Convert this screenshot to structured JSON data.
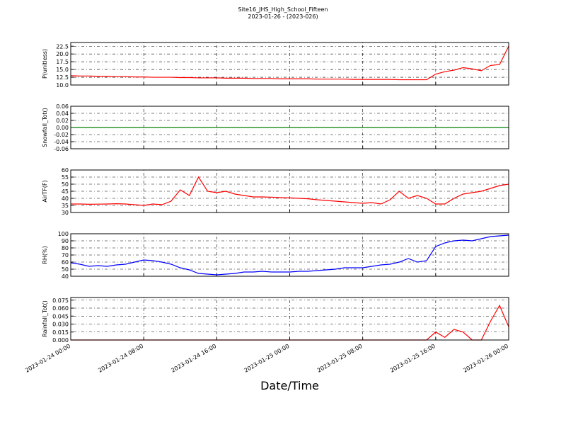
{
  "chart_data": [
    {
      "type": "line",
      "title": "Site16_JHS_High_School_Fifteen",
      "subtitle": "2023-01-26 - (2023-026)",
      "ylabel": "P(unitless)",
      "color": "#ff0000",
      "grid": true,
      "xticklabels": false,
      "xlim": [
        "2023-01-24 00:00",
        "2023-01-26 00:00"
      ],
      "xticks": [
        "2023-01-24 00:00",
        "2023-01-24 08:00",
        "2023-01-24 16:00",
        "2023-01-25 00:00",
        "2023-01-25 08:00",
        "2023-01-25 16:00",
        "2023-01-26 00:00"
      ],
      "ylim": [
        10,
        23.7
      ],
      "yticks": [
        {
          "value": 10,
          "label": "10.0"
        },
        {
          "value": 12.5,
          "label": "12.5"
        },
        {
          "value": 15,
          "label": "15.0"
        },
        {
          "value": 17.5,
          "label": "17.5"
        },
        {
          "value": 20,
          "label": "20.0"
        },
        {
          "value": 22.5,
          "label": "22.5"
        }
      ],
      "x": [
        "2023-01-24 00:00",
        "2023-01-24 01:00",
        "2023-01-24 02:00",
        "2023-01-24 03:00",
        "2023-01-24 04:00",
        "2023-01-24 05:00",
        "2023-01-24 06:00",
        "2023-01-24 07:00",
        "2023-01-24 08:00",
        "2023-01-24 09:00",
        "2023-01-24 10:00",
        "2023-01-24 11:00",
        "2023-01-24 12:00",
        "2023-01-24 13:00",
        "2023-01-24 14:00",
        "2023-01-24 15:00",
        "2023-01-24 16:00",
        "2023-01-24 17:00",
        "2023-01-24 18:00",
        "2023-01-24 19:00",
        "2023-01-24 20:00",
        "2023-01-24 21:00",
        "2023-01-24 22:00",
        "2023-01-24 23:00",
        "2023-01-25 00:00",
        "2023-01-25 01:00",
        "2023-01-25 02:00",
        "2023-01-25 03:00",
        "2023-01-25 04:00",
        "2023-01-25 05:00",
        "2023-01-25 06:00",
        "2023-01-25 07:00",
        "2023-01-25 08:00",
        "2023-01-25 09:00",
        "2023-01-25 10:00",
        "2023-01-25 11:00",
        "2023-01-25 12:00",
        "2023-01-25 13:00",
        "2023-01-25 14:00",
        "2023-01-25 15:00",
        "2023-01-25 16:00",
        "2023-01-25 17:00",
        "2023-01-25 18:00",
        "2023-01-25 19:00",
        "2023-01-25 20:00",
        "2023-01-25 21:00",
        "2023-01-25 22:00",
        "2023-01-25 23:00",
        "2023-01-26 00:00"
      ],
      "values": [
        13.0,
        12.9,
        12.9,
        12.8,
        12.8,
        12.7,
        12.7,
        12.6,
        12.6,
        12.5,
        12.5,
        12.5,
        12.4,
        12.4,
        12.3,
        12.3,
        12.3,
        12.2,
        12.2,
        12.2,
        12.1,
        12.1,
        12.1,
        12.0,
        12.0,
        12.0,
        12.0,
        11.9,
        11.9,
        11.9,
        11.9,
        11.8,
        11.8,
        11.8,
        11.8,
        11.8,
        11.7,
        11.7,
        11.7,
        11.7,
        13.5,
        14.3,
        14.8,
        15.6,
        15.2,
        14.6,
        16.3,
        16.6,
        22.5
      ]
    },
    {
      "type": "line",
      "ylabel": "Snowfall_Tot()",
      "color": "#007f00",
      "grid": true,
      "xticklabels": false,
      "xlim": [
        "2023-01-24 00:00",
        "2023-01-26 00:00"
      ],
      "xticks": [
        "2023-01-24 00:00",
        "2023-01-24 08:00",
        "2023-01-24 16:00",
        "2023-01-25 00:00",
        "2023-01-25 08:00",
        "2023-01-25 16:00",
        "2023-01-26 00:00"
      ],
      "ylim": [
        -0.06,
        0.06
      ],
      "yticks": [
        {
          "value": -0.06,
          "label": "-0.06"
        },
        {
          "value": -0.04,
          "label": "-0.04"
        },
        {
          "value": -0.02,
          "label": "-0.02"
        },
        {
          "value": 0,
          "label": "0.00"
        },
        {
          "value": 0.02,
          "label": "0.02"
        },
        {
          "value": 0.04,
          "label": "0.04"
        },
        {
          "value": 0.06,
          "label": "0.06"
        }
      ],
      "x": [
        "2023-01-24 00:00",
        "2023-01-24 01:00",
        "2023-01-24 02:00",
        "2023-01-24 03:00",
        "2023-01-24 04:00",
        "2023-01-24 05:00",
        "2023-01-24 06:00",
        "2023-01-24 07:00",
        "2023-01-24 08:00",
        "2023-01-24 09:00",
        "2023-01-24 10:00",
        "2023-01-24 11:00",
        "2023-01-24 12:00",
        "2023-01-24 13:00",
        "2023-01-24 14:00",
        "2023-01-24 15:00",
        "2023-01-24 16:00",
        "2023-01-24 17:00",
        "2023-01-24 18:00",
        "2023-01-24 19:00",
        "2023-01-24 20:00",
        "2023-01-24 21:00",
        "2023-01-24 22:00",
        "2023-01-24 23:00",
        "2023-01-25 00:00",
        "2023-01-25 01:00",
        "2023-01-25 02:00",
        "2023-01-25 03:00",
        "2023-01-25 04:00",
        "2023-01-25 05:00",
        "2023-01-25 06:00",
        "2023-01-25 07:00",
        "2023-01-25 08:00",
        "2023-01-25 09:00",
        "2023-01-25 10:00",
        "2023-01-25 11:00",
        "2023-01-25 12:00",
        "2023-01-25 13:00",
        "2023-01-25 14:00",
        "2023-01-25 15:00",
        "2023-01-25 16:00",
        "2023-01-25 17:00",
        "2023-01-25 18:00",
        "2023-01-25 19:00",
        "2023-01-25 20:00",
        "2023-01-25 21:00",
        "2023-01-25 22:00",
        "2023-01-25 23:00",
        "2023-01-26 00:00"
      ],
      "values": [
        0,
        0,
        0,
        0,
        0,
        0,
        0,
        0,
        0,
        0,
        0,
        0,
        0,
        0,
        0,
        0,
        0,
        0,
        0,
        0,
        0,
        0,
        0,
        0,
        0,
        0,
        0,
        0,
        0,
        0,
        0,
        0,
        0,
        0,
        0,
        0,
        0,
        0,
        0,
        0,
        0,
        0,
        0,
        0,
        0,
        0,
        0,
        0,
        0
      ]
    },
    {
      "type": "line",
      "ylabel": "AirTF(F)",
      "color": "#ff0000",
      "grid": true,
      "xticklabels": false,
      "xlim": [
        "2023-01-24 00:00",
        "2023-01-26 00:00"
      ],
      "xticks": [
        "2023-01-24 00:00",
        "2023-01-24 08:00",
        "2023-01-24 16:00",
        "2023-01-25 00:00",
        "2023-01-25 08:00",
        "2023-01-25 16:00",
        "2023-01-26 00:00"
      ],
      "ylim": [
        30,
        60
      ],
      "yticks": [
        30,
        35,
        40,
        45,
        50,
        55,
        60
      ],
      "x": [
        "2023-01-24 00:00",
        "2023-01-24 01:00",
        "2023-01-24 02:00",
        "2023-01-24 03:00",
        "2023-01-24 04:00",
        "2023-01-24 05:00",
        "2023-01-24 06:00",
        "2023-01-24 07:00",
        "2023-01-24 08:00",
        "2023-01-24 09:00",
        "2023-01-24 10:00",
        "2023-01-24 11:00",
        "2023-01-24 12:00",
        "2023-01-24 13:00",
        "2023-01-24 14:00",
        "2023-01-24 15:00",
        "2023-01-24 16:00",
        "2023-01-24 17:00",
        "2023-01-24 18:00",
        "2023-01-24 19:00",
        "2023-01-24 20:00",
        "2023-01-24 21:00",
        "2023-01-24 22:00",
        "2023-01-24 23:00",
        "2023-01-25 00:00",
        "2023-01-25 01:00",
        "2023-01-25 02:00",
        "2023-01-25 03:00",
        "2023-01-25 04:00",
        "2023-01-25 05:00",
        "2023-01-25 06:00",
        "2023-01-25 07:00",
        "2023-01-25 08:00",
        "2023-01-25 09:00",
        "2023-01-25 10:00",
        "2023-01-25 11:00",
        "2023-01-25 12:00",
        "2023-01-25 13:00",
        "2023-01-25 14:00",
        "2023-01-25 15:00",
        "2023-01-25 16:00",
        "2023-01-25 17:00",
        "2023-01-25 18:00",
        "2023-01-25 19:00",
        "2023-01-25 20:00",
        "2023-01-25 21:00",
        "2023-01-25 22:00",
        "2023-01-25 23:00",
        "2023-01-26 00:00"
      ],
      "values": [
        36,
        36,
        35.8,
        35.9,
        36,
        36.2,
        36,
        35.5,
        35,
        36,
        35.5,
        38,
        46,
        42,
        55,
        45,
        44,
        45,
        43,
        42,
        41,
        41,
        40.8,
        40.5,
        40.3,
        40,
        39.7,
        39,
        38.5,
        38,
        37.5,
        37,
        36.5,
        37,
        36,
        39,
        45,
        40,
        42,
        40,
        36,
        36,
        40,
        43,
        44,
        45,
        47,
        49,
        50
      ]
    },
    {
      "type": "line",
      "ylabel": "RH(%)",
      "color": "#0000ff",
      "grid": true,
      "xticklabels": false,
      "xlim": [
        "2023-01-24 00:00",
        "2023-01-26 00:00"
      ],
      "xticks": [
        "2023-01-24 00:00",
        "2023-01-24 08:00",
        "2023-01-24 16:00",
        "2023-01-25 00:00",
        "2023-01-25 08:00",
        "2023-01-25 16:00",
        "2023-01-26 00:00"
      ],
      "ylim": [
        40,
        100
      ],
      "yticks": [
        40,
        50,
        60,
        70,
        80,
        90,
        100
      ],
      "x": [
        "2023-01-24 00:00",
        "2023-01-24 01:00",
        "2023-01-24 02:00",
        "2023-01-24 03:00",
        "2023-01-24 04:00",
        "2023-01-24 05:00",
        "2023-01-24 06:00",
        "2023-01-24 07:00",
        "2023-01-24 08:00",
        "2023-01-24 09:00",
        "2023-01-24 10:00",
        "2023-01-24 11:00",
        "2023-01-24 12:00",
        "2023-01-24 13:00",
        "2023-01-24 14:00",
        "2023-01-24 15:00",
        "2023-01-24 16:00",
        "2023-01-24 17:00",
        "2023-01-24 18:00",
        "2023-01-24 19:00",
        "2023-01-24 20:00",
        "2023-01-24 21:00",
        "2023-01-24 22:00",
        "2023-01-24 23:00",
        "2023-01-25 00:00",
        "2023-01-25 01:00",
        "2023-01-25 02:00",
        "2023-01-25 03:00",
        "2023-01-25 04:00",
        "2023-01-25 05:00",
        "2023-01-25 06:00",
        "2023-01-25 07:00",
        "2023-01-25 08:00",
        "2023-01-25 09:00",
        "2023-01-25 10:00",
        "2023-01-25 11:00",
        "2023-01-25 12:00",
        "2023-01-25 13:00",
        "2023-01-25 14:00",
        "2023-01-25 15:00",
        "2023-01-25 16:00",
        "2023-01-25 17:00",
        "2023-01-25 18:00",
        "2023-01-25 19:00",
        "2023-01-25 20:00",
        "2023-01-25 21:00",
        "2023-01-25 22:00",
        "2023-01-25 23:00",
        "2023-01-26 00:00"
      ],
      "values": [
        59,
        57,
        54,
        55,
        54,
        56,
        57,
        60,
        63,
        62,
        60,
        57,
        52,
        49,
        44,
        43,
        42,
        43,
        44,
        46,
        46,
        47,
        46,
        46,
        46,
        47,
        47,
        48,
        49,
        50,
        52,
        52,
        52,
        54,
        56,
        57,
        60,
        65,
        60,
        62,
        82,
        87,
        90,
        91,
        90,
        93,
        96,
        97,
        98
      ]
    },
    {
      "type": "line",
      "ylabel": "Rainfall_Tot()",
      "xlabel": "Date/Time",
      "color": "#ff0000",
      "grid": true,
      "xticklabels": true,
      "xlim": [
        "2023-01-24 00:00",
        "2023-01-26 00:00"
      ],
      "xticks": [
        "2023-01-24 00:00",
        "2023-01-24 08:00",
        "2023-01-24 16:00",
        "2023-01-25 00:00",
        "2023-01-25 08:00",
        "2023-01-25 16:00",
        "2023-01-26 00:00"
      ],
      "ylim": [
        0,
        0.08
      ],
      "yticks": [
        {
          "value": 0,
          "label": "0.000"
        },
        {
          "value": 0.015,
          "label": "0.015"
        },
        {
          "value": 0.03,
          "label": "0.030"
        },
        {
          "value": 0.045,
          "label": "0.045"
        },
        {
          "value": 0.06,
          "label": "0.060"
        },
        {
          "value": 0.075,
          "label": "0.075"
        }
      ],
      "x": [
        "2023-01-24 00:00",
        "2023-01-24 01:00",
        "2023-01-24 02:00",
        "2023-01-24 03:00",
        "2023-01-24 04:00",
        "2023-01-24 05:00",
        "2023-01-24 06:00",
        "2023-01-24 07:00",
        "2023-01-24 08:00",
        "2023-01-24 09:00",
        "2023-01-24 10:00",
        "2023-01-24 11:00",
        "2023-01-24 12:00",
        "2023-01-24 13:00",
        "2023-01-24 14:00",
        "2023-01-24 15:00",
        "2023-01-24 16:00",
        "2023-01-24 17:00",
        "2023-01-24 18:00",
        "2023-01-24 19:00",
        "2023-01-24 20:00",
        "2023-01-24 21:00",
        "2023-01-24 22:00",
        "2023-01-24 23:00",
        "2023-01-25 00:00",
        "2023-01-25 01:00",
        "2023-01-25 02:00",
        "2023-01-25 03:00",
        "2023-01-25 04:00",
        "2023-01-25 05:00",
        "2023-01-25 06:00",
        "2023-01-25 07:00",
        "2023-01-25 08:00",
        "2023-01-25 09:00",
        "2023-01-25 10:00",
        "2023-01-25 11:00",
        "2023-01-25 12:00",
        "2023-01-25 13:00",
        "2023-01-25 14:00",
        "2023-01-25 15:00",
        "2023-01-25 16:00",
        "2023-01-25 17:00",
        "2023-01-25 18:00",
        "2023-01-25 19:00",
        "2023-01-25 20:00",
        "2023-01-25 21:00",
        "2023-01-25 22:00",
        "2023-01-25 23:00",
        "2023-01-26 00:00"
      ],
      "values": [
        0,
        0,
        0,
        0,
        0,
        0,
        0,
        0,
        0,
        0,
        0,
        0,
        0,
        0,
        0,
        0,
        0,
        0,
        0,
        0,
        0,
        0,
        0,
        0,
        0,
        0,
        0,
        0,
        0,
        0,
        0,
        0,
        0,
        0,
        0,
        0,
        0,
        0,
        0,
        0,
        0.015,
        0.005,
        0.02,
        0.015,
        0,
        0,
        0.035,
        0.065,
        0.025
      ]
    }
  ]
}
